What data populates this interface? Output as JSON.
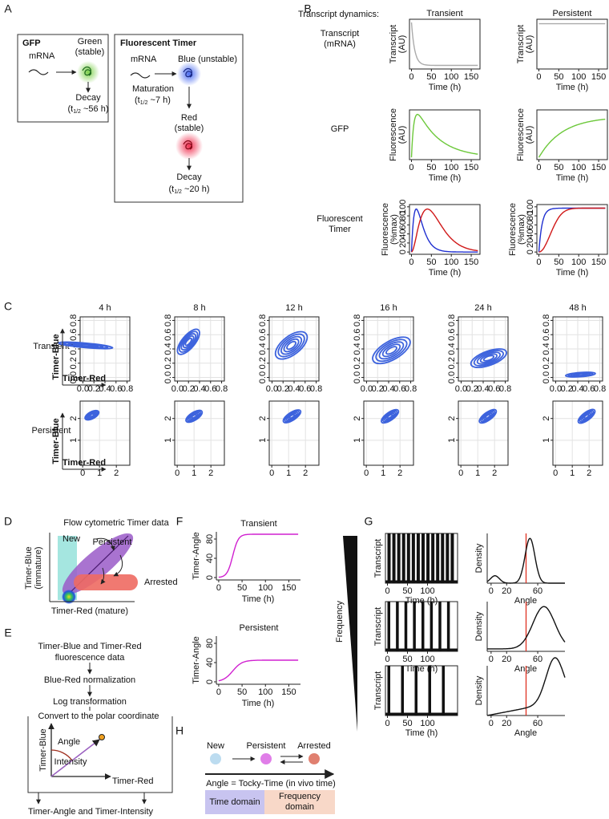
{
  "A": {
    "label": "A",
    "gfp": {
      "title": "GFP",
      "mrna": "mRNA",
      "product": [
        "Green",
        "(stable)"
      ],
      "decay": "Decay",
      "half_life": [
        "(t",
        "1/2",
        " ~56 h)"
      ]
    },
    "timer": {
      "title": "Fluorescent Timer",
      "mrna": "mRNA",
      "product": "Blue (unstable)",
      "maturation": "Maturation",
      "maturation_half_life": [
        "(t",
        "1/2",
        " ~7 h)"
      ],
      "mature": [
        "Red",
        "(stable)"
      ],
      "decay": "Decay",
      "half_life": [
        "(t",
        "1/2",
        " ~20 h)"
      ]
    }
  },
  "B": {
    "label": "B",
    "header": "Transcript dynamics:",
    "columns": [
      "Transient",
      "Persistent"
    ],
    "rows": [
      {
        "label": [
          "Transcript",
          "(mRNA)"
        ],
        "ylabel": [
          "Transcript",
          "(AU)"
        ]
      },
      {
        "label": [
          "GFP"
        ],
        "ylabel": [
          "Fluorescence",
          "(AU)"
        ]
      },
      {
        "label": [
          "Fluorescent",
          "Timer"
        ],
        "ylabel": [
          "Fluorescence",
          "(%max)"
        ],
        "yticks": [
          0,
          20,
          40,
          60,
          80,
          100
        ]
      }
    ],
    "xlabel": "Time (h)",
    "xticks": [
      0,
      50,
      100,
      150
    ],
    "xlim": [
      -5,
      172
    ],
    "ylim": [
      -5,
      105
    ]
  },
  "C": {
    "label": "C",
    "times": [
      "4 h",
      "8 h",
      "12 h",
      "16 h",
      "24 h",
      "48 h"
    ],
    "rows": [
      {
        "label": "Transient",
        "ticks": [
          {
            "value": 0,
            "label": "0.0"
          },
          {
            "value": 0.2,
            "label": "0.2"
          },
          {
            "value": 0.4,
            "label": "0.4"
          },
          {
            "value": 0.6,
            "label": "0.6"
          },
          {
            "value": 0.8,
            "label": "0.8"
          }
        ],
        "lim": [
          -0.05,
          0.85
        ]
      },
      {
        "label": "Persistent",
        "xticks": [
          0,
          1,
          2
        ],
        "yticks": [
          1,
          2
        ],
        "lim": [
          -0.15,
          2.8
        ]
      }
    ],
    "ylabel": "Timer-Blue",
    "xlabel": "Timer-Red"
  },
  "D": {
    "label": "D",
    "title": "Flow cytometric Timer data",
    "new": "New",
    "persistent": "Persistent",
    "arrested": "Arrested",
    "ylabel": [
      "Timer-Blue",
      "(immature)"
    ],
    "xlabel": "Timer-Red (mature)"
  },
  "E": {
    "label": "E",
    "steps": [
      "Timer-Blue and Timer-Red",
      "fluorescence data",
      "Blue-Red normalization",
      "Log transformation"
    ],
    "box_title": "Convert to the polar coordinate",
    "angle": "Angle",
    "intensity": "Intensity",
    "ylabel": "Timer-Blue",
    "xlabel": "Timer-Red",
    "output": "Timer-Angle and Timer-Intensity"
  },
  "F": {
    "label": "F",
    "plots": [
      {
        "title": "Transient"
      },
      {
        "title": "Persistent"
      }
    ],
    "ylabel": "Timer-Angle",
    "xlabel": "Time (h)",
    "yticks": [
      0,
      40,
      80
    ],
    "xticks": [
      0,
      50,
      100,
      150
    ],
    "ylim": [
      -5,
      95
    ],
    "xlim": [
      -5,
      175
    ]
  },
  "G": {
    "label": "G",
    "axis": "Frequency",
    "transcript": {
      "ylabel": "Transcript",
      "xlabel": "Time (h)",
      "xticks": [
        0,
        50,
        100
      ],
      "xlim": [
        -5,
        175
      ]
    },
    "density": {
      "ylabel": "Density",
      "xlabel": "Angle",
      "xticks": [
        0,
        20,
        60
      ],
      "xlim": [
        -5,
        95
      ]
    }
  },
  "H": {
    "label": "H",
    "states": [
      "New",
      "Persistent",
      "Arrested"
    ],
    "axis": "Angle = Tocky-Time (in vivo time)",
    "domains": [
      [
        "Time domain"
      ],
      [
        "Frequency",
        "domain"
      ]
    ]
  }
}
